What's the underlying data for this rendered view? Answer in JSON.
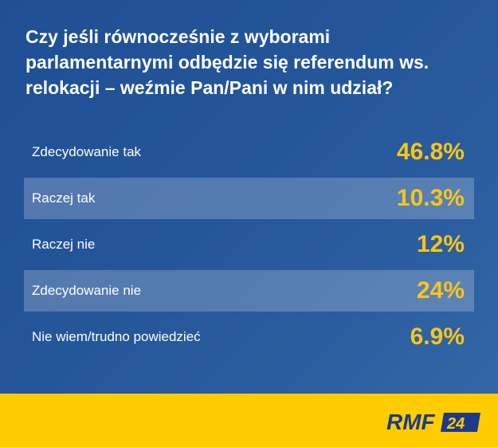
{
  "chart_data": {
    "type": "table",
    "title": "Czy jeśli równocześnie z wyborami parlamentarnymi odbędzie się referendum ws. relokacji – weźmie Pan/Pani w nim udział?",
    "categories": [
      "Zdecydowanie tak",
      "Raczej tak",
      "Raczej nie",
      "Zdecydowanie nie",
      "Nie wiem/trudno powiedzieć"
    ],
    "values": [
      46.8,
      10.3,
      12,
      24,
      6.9
    ],
    "value_labels": [
      "46.8%",
      "10.3%",
      "12%",
      "24%",
      "6.9%"
    ]
  },
  "colors": {
    "background": "#25579a",
    "value": "#f8c51b",
    "footer": "#ffcc00",
    "logo": "#1d3a8a"
  },
  "logo": {
    "text": "RMF",
    "badge": "24"
  }
}
